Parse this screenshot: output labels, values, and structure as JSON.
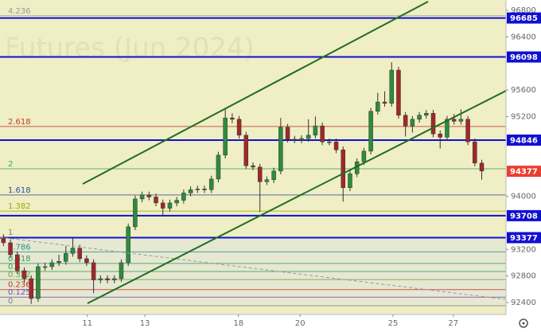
{
  "chart_data": {
    "type": "candlestick",
    "title": "Futures (Jun 2024)",
    "xlim": [
      -0.5,
      72.5
    ],
    "xticks": [
      {
        "value": 12.1,
        "label": "11"
      },
      {
        "value": 20.4,
        "label": "13"
      },
      {
        "value": 33.9,
        "label": "18"
      },
      {
        "value": 42.8,
        "label": "20"
      },
      {
        "value": 56.2,
        "label": "25"
      },
      {
        "value": 64.9,
        "label": "27"
      }
    ],
    "ylim": [
      92220,
      96956
    ],
    "yticks": [
      92400,
      92800,
      93200,
      94000,
      95200,
      95600,
      96400,
      96800
    ],
    "open": [
      93380,
      93300,
      93120,
      92880,
      92760,
      92460,
      92940,
      92940,
      93000,
      93020,
      93140,
      93220,
      93060,
      93000,
      92740,
      92760,
      92740,
      92760,
      93000,
      93540,
      93960,
      94020,
      93990,
      93900,
      93820,
      93900,
      93940,
      94050,
      94100,
      94110,
      94100,
      94260,
      94620,
      95180,
      95160,
      94920,
      94460,
      94440,
      94220,
      94250,
      94380,
      95040,
      94860,
      94850,
      94870,
      94920,
      95060,
      94820,
      94820,
      94700,
      94130,
      94340,
      94520,
      94680,
      95280,
      95420,
      95400,
      95900,
      95220,
      95060,
      95160,
      95220,
      95250,
      94940,
      94890,
      95160,
      95130,
      95160,
      94820,
      94500
    ],
    "high": [
      93430,
      93350,
      93170,
      92930,
      92810,
      92990,
      93000,
      93050,
      93120,
      93250,
      93370,
      93270,
      93110,
      93050,
      92810,
      92810,
      92810,
      93050,
      93590,
      94010,
      94070,
      94070,
      94040,
      93950,
      93950,
      93990,
      94100,
      94150,
      94160,
      94160,
      94310,
      94670,
      95330,
      95250,
      95210,
      94970,
      94510,
      94490,
      94300,
      94430,
      95180,
      95090,
      94910,
      94920,
      95160,
      95200,
      95110,
      94870,
      94870,
      94750,
      94390,
      94570,
      94730,
      95330,
      95560,
      95580,
      96020,
      95950,
      95270,
      95210,
      95270,
      95300,
      95300,
      94990,
      95210,
      95240,
      95310,
      95210,
      94870,
      94550
    ],
    "low": [
      93250,
      93070,
      92830,
      92710,
      92380,
      92410,
      92880,
      92890,
      92950,
      92970,
      93090,
      93010,
      92950,
      92540,
      92690,
      92690,
      92690,
      92710,
      92950,
      93490,
      93910,
      93940,
      93850,
      93700,
      93770,
      93850,
      93890,
      94000,
      94050,
      94050,
      94050,
      94210,
      94570,
      95100,
      94870,
      94410,
      94390,
      93760,
      94170,
      94200,
      94330,
      94810,
      94800,
      94800,
      94820,
      94870,
      94770,
      94770,
      94650,
      93920,
      94080,
      94290,
      94470,
      94630,
      95230,
      95350,
      95350,
      95170,
      94900,
      94960,
      95110,
      95170,
      94890,
      94720,
      94840,
      95080,
      95080,
      94770,
      94450,
      94250
    ],
    "close": [
      93300,
      93120,
      92880,
      92760,
      92460,
      92940,
      92940,
      93000,
      93020,
      93140,
      93220,
      93060,
      93000,
      92740,
      92760,
      92740,
      92760,
      93000,
      93540,
      93960,
      94020,
      93990,
      93900,
      93820,
      93900,
      93940,
      94050,
      94100,
      94110,
      94100,
      94260,
      94620,
      95180,
      95160,
      94920,
      94460,
      94440,
      94220,
      94250,
      94380,
      95040,
      94860,
      94850,
      94870,
      94920,
      95060,
      94820,
      94820,
      94700,
      94130,
      94340,
      94520,
      94680,
      95280,
      95420,
      95400,
      95900,
      95220,
      95060,
      95160,
      95220,
      95250,
      94940,
      94890,
      95160,
      95130,
      95160,
      94820,
      94500,
      94380
    ],
    "up_color": "#2e8b3e",
    "down_color": "#a0282a",
    "levels": [
      {
        "value": 96685,
        "color": "#1010d0"
      },
      {
        "value": 96098,
        "color": "#1010d0"
      },
      {
        "value": 94846,
        "color": "#1010d0"
      },
      {
        "value": 93708,
        "color": "#1010d0"
      },
      {
        "value": 93377,
        "color": "#1010d0"
      }
    ],
    "last_price": 94377,
    "last_color": "#e8402f",
    "fib_levels": [
      {
        "label": "4.236",
        "price": 96719,
        "color": "#9a9a9a"
      },
      {
        "label": "2.618",
        "price": 95051,
        "color": "#c0392b"
      },
      {
        "label": "2",
        "price": 94414,
        "color": "#3aa55a"
      },
      {
        "label": "1.618",
        "price": 94020,
        "color": "#3050a0"
      },
      {
        "label": "1.382",
        "price": 93777,
        "color": "#9aae00"
      },
      {
        "label": "1",
        "price": 93383,
        "color": "#808080"
      },
      {
        "label": "0.786",
        "price": 93162,
        "color": "#2a8c8c"
      },
      {
        "label": "0.618",
        "price": 92989,
        "color": "#2ea05a"
      },
      {
        "label": "0.5",
        "price": 92868,
        "color": "#3aa040"
      },
      {
        "label": "0.382",
        "price": 92746,
        "color": "#6aa040"
      },
      {
        "label": "0.236",
        "price": 92595,
        "color": "#c03030"
      },
      {
        "label": "0.125",
        "price": 92481,
        "color": "#7050b0"
      },
      {
        "label": "0",
        "price": 92352,
        "color": "#808080"
      }
    ]
  }
}
